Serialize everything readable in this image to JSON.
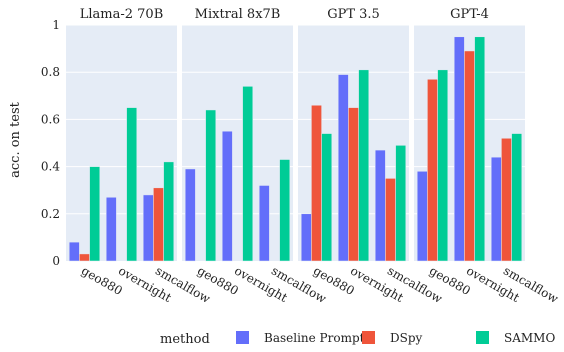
{
  "chart_data": {
    "type": "bar",
    "ylabel": "acc. on test",
    "ylim": [
      0,
      1
    ],
    "yticks": [
      "0",
      "0.2",
      "0.4",
      "0.6",
      "0.8",
      "1"
    ],
    "categories": [
      "geo880",
      "overnight",
      "smcalflow"
    ],
    "legend": {
      "title": "method",
      "placement": "bottom",
      "entries": [
        "Baseline Prompt",
        "DSpy",
        "SAMMO"
      ]
    },
    "colors": {
      "Baseline Prompt": "#636efa",
      "DSpy": "#ef553b",
      "SAMMO": "#00cc96"
    },
    "panels": [
      {
        "title": "Llama-2 70B",
        "series": [
          {
            "name": "Baseline Prompt",
            "values": [
              0.08,
              0.27,
              0.28
            ]
          },
          {
            "name": "DSpy",
            "values": [
              0.03,
              0.0,
              0.31
            ]
          },
          {
            "name": "SAMMO",
            "values": [
              0.4,
              0.65,
              0.42
            ]
          }
        ]
      },
      {
        "title": "Mixtral 8x7B",
        "series": [
          {
            "name": "Baseline Prompt",
            "values": [
              0.39,
              0.55,
              0.32
            ]
          },
          {
            "name": "DSpy",
            "values": [
              0.0,
              0.0,
              0.0
            ]
          },
          {
            "name": "SAMMO",
            "values": [
              0.64,
              0.74,
              0.43
            ]
          }
        ]
      },
      {
        "title": "GPT 3.5",
        "series": [
          {
            "name": "Baseline Prompt",
            "values": [
              0.2,
              0.79,
              0.47
            ]
          },
          {
            "name": "DSpy",
            "values": [
              0.66,
              0.65,
              0.35
            ]
          },
          {
            "name": "SAMMO",
            "values": [
              0.54,
              0.81,
              0.49
            ]
          }
        ]
      },
      {
        "title": "GPT-4",
        "series": [
          {
            "name": "Baseline Prompt",
            "values": [
              0.38,
              0.95,
              0.44
            ]
          },
          {
            "name": "DSpy",
            "values": [
              0.77,
              0.89,
              0.52
            ]
          },
          {
            "name": "SAMMO",
            "values": [
              0.81,
              0.95,
              0.54
            ]
          }
        ]
      }
    ]
  }
}
